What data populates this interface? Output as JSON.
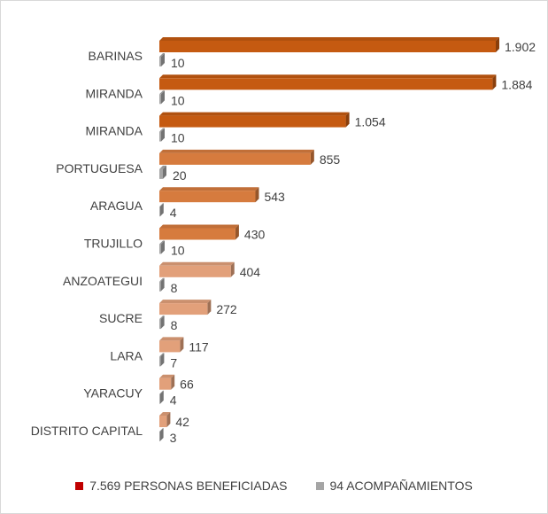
{
  "chart_data": {
    "type": "bar",
    "orientation": "horizontal",
    "style": "3d-clustered",
    "categories": [
      "BARINAS",
      "MIRANDA",
      "MIRANDA",
      "PORTUGUESA",
      "ARAGUA",
      "TRUJILLO",
      "ANZOATEGUI",
      "SUCRE",
      "LARA",
      "YARACUY",
      "DISTRITO CAPITAL"
    ],
    "series": [
      {
        "name": "7.569 PERSONAS BENEFICIADAS",
        "values": [
          1902,
          1884,
          1054,
          855,
          543,
          430,
          404,
          272,
          117,
          66,
          42
        ],
        "labels": [
          "1.902",
          "1.884",
          "1.054",
          "855",
          "543",
          "430",
          "404",
          "272",
          "117",
          "66",
          "42"
        ],
        "colors": [
          "#c55a11",
          "#c55a11",
          "#c55a11",
          "#d67b3e",
          "#d67b3e",
          "#d67b3e",
          "#e2a07a",
          "#e2a07a",
          "#e2a07a",
          "#e2a07a",
          "#e2a07a"
        ],
        "legend_color": "#c00000"
      },
      {
        "name": "94 ACOMPAÑAMIENTOS",
        "values": [
          10,
          10,
          10,
          20,
          4,
          10,
          8,
          8,
          7,
          4,
          3
        ],
        "labels": [
          "10",
          "10",
          "10",
          "20",
          "4",
          "10",
          "8",
          "8",
          "7",
          "4",
          "3"
        ],
        "colors": [
          "#a5a5a5"
        ],
        "legend_color": "#a5a5a5"
      }
    ],
    "xlim": [
      0,
      1902
    ],
    "grid": false,
    "axes_visible": false,
    "legend_position": "bottom"
  }
}
